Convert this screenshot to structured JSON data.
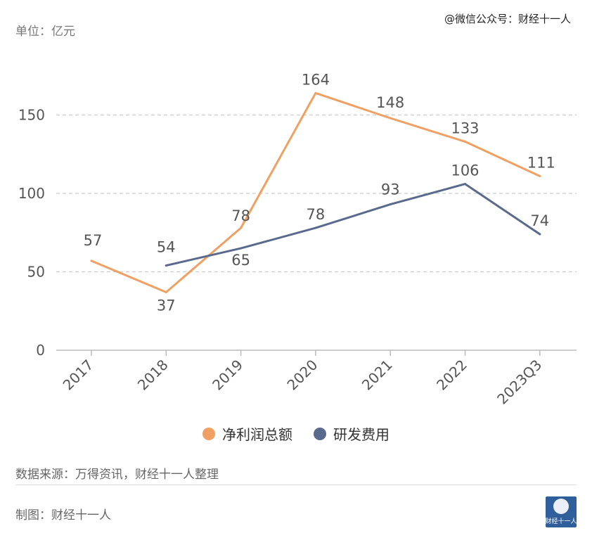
{
  "unit_label": "单位：亿元",
  "watermark": "@微信公众号：财经十一人",
  "source": "数据来源：万得资讯，财经十一人整理",
  "maker": "制图：财经十一人",
  "logo_text": "财经十一人",
  "colors": {
    "profit": "#f0a062",
    "rd": "#5a6a8c",
    "grid": "#cccccc",
    "axis": "#bbbbbb"
  },
  "chart_data": {
    "type": "line",
    "categories": [
      "2017",
      "2018",
      "2019",
      "2020",
      "2021",
      "2022",
      "2023Q3"
    ],
    "ylim": [
      0,
      180
    ],
    "yticks": [
      0,
      50,
      100,
      150
    ],
    "grid": true,
    "legend_position": "bottom",
    "series": [
      {
        "name": "净利润总额",
        "color": "#f0a062",
        "values": [
          57,
          37,
          78,
          164,
          148,
          133,
          111
        ]
      },
      {
        "name": "研发费用",
        "color": "#5a6a8c",
        "values": [
          null,
          54,
          65,
          78,
          93,
          106,
          74
        ]
      }
    ]
  }
}
